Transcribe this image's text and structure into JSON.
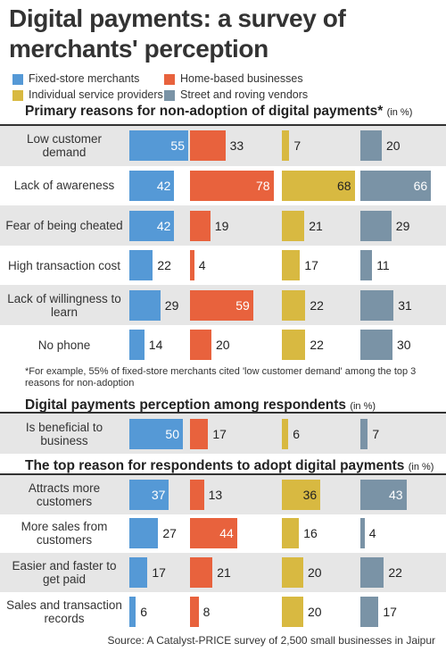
{
  "title": "Digital payments: a survey of merchants' perception",
  "chart_data": [
    {
      "type": "bar",
      "orientation": "horizontal",
      "title": "Primary reasons for non-adoption of digital payments*",
      "unit": "(in %)",
      "categories": [
        "Low customer demand",
        "Lack of awareness",
        "Fear of being cheated",
        "High transaction cost",
        "Lack of willingness to learn",
        "No phone"
      ],
      "series": [
        {
          "name": "Fixed-store merchants",
          "color": "#5599d6",
          "values": [
            55,
            42,
            42,
            22,
            29,
            14
          ]
        },
        {
          "name": "Home-based businesses",
          "color": "#e8623d",
          "values": [
            33,
            78,
            19,
            4,
            59,
            20
          ]
        },
        {
          "name": "Individual service providers",
          "color": "#d8b941",
          "values": [
            7,
            68,
            21,
            17,
            22,
            22
          ]
        },
        {
          "name": "Street and roving vendors",
          "color": "#7a93a6",
          "values": [
            20,
            66,
            29,
            11,
            31,
            30
          ]
        }
      ],
      "footnote": "*For example, 55% of fixed-store merchants cited 'low customer demand' among the top 3 reasons for non-adoption"
    },
    {
      "type": "bar",
      "orientation": "horizontal",
      "title": "Digital payments perception among respondents",
      "unit": "(in %)",
      "categories": [
        "Is beneficial to business"
      ],
      "series": [
        {
          "color": "#5599d6",
          "values": [
            50
          ]
        },
        {
          "color": "#e8623d",
          "values": [
            17
          ]
        },
        {
          "color": "#d8b941",
          "values": [
            6
          ]
        },
        {
          "color": "#7a93a6",
          "values": [
            7
          ]
        }
      ]
    },
    {
      "type": "bar",
      "orientation": "horizontal",
      "title": "The top reason for respondents to adopt digital payments",
      "unit": "(in %)",
      "categories": [
        "Attracts more customers",
        "More sales from customers",
        "Easier and faster to get paid",
        "Sales and transaction records"
      ],
      "series": [
        {
          "color": "#5599d6",
          "values": [
            37,
            27,
            17,
            6
          ]
        },
        {
          "color": "#e8623d",
          "values": [
            13,
            44,
            21,
            8
          ]
        },
        {
          "color": "#d8b941",
          "values": [
            36,
            16,
            20,
            20
          ]
        },
        {
          "color": "#7a93a6",
          "values": [
            43,
            4,
            22,
            17
          ]
        }
      ]
    }
  ],
  "source": "Source: A Catalyst-PRICE survey of 2,500 small businesses in Jaipur"
}
